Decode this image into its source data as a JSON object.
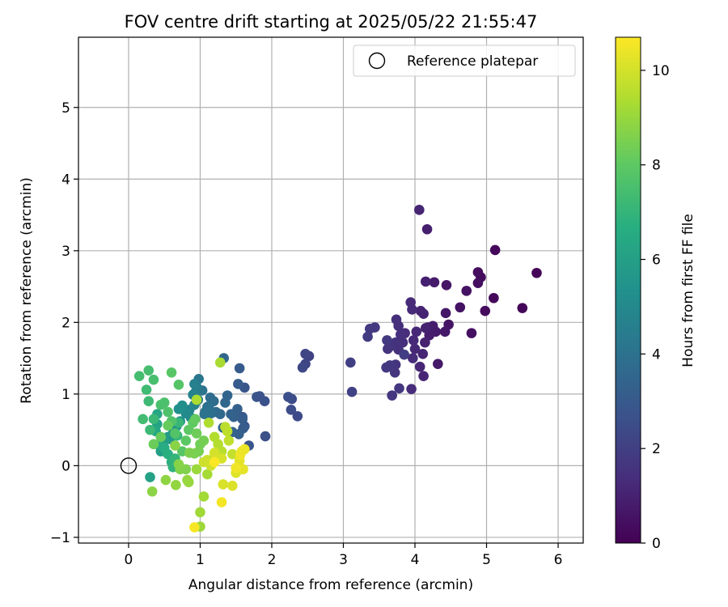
{
  "chart_data": {
    "type": "scatter",
    "title": "FOV centre drift starting at 2025/05/22 21:55:47",
    "xlabel": "Angular distance from reference (arcmin)",
    "ylabel": "Rotation from reference (arcmin)",
    "xlim": [
      -0.7,
      6.35
    ],
    "ylim": [
      -1.08,
      5.98
    ],
    "xticks": [
      0,
      1,
      2,
      3,
      4,
      5,
      6
    ],
    "yticks": [
      -1,
      0,
      1,
      2,
      3,
      4,
      5
    ],
    "grid": true,
    "legend": {
      "position": "top-right",
      "entries": [
        {
          "label": "Reference platepar",
          "marker": "open-circle",
          "x": 0,
          "y": 0
        }
      ]
    },
    "colorbar": {
      "label": "Hours from first FF file",
      "colormap": "viridis",
      "range": [
        0,
        10.7
      ],
      "ticks": [
        0,
        2,
        4,
        6,
        8,
        10
      ]
    },
    "points": [
      [
        5.7,
        2.69,
        0.1
      ],
      [
        5.5,
        2.2,
        0.15
      ],
      [
        5.12,
        3.01,
        0.2
      ],
      [
        5.1,
        2.34,
        0.25
      ],
      [
        4.98,
        2.16,
        0.3
      ],
      [
        4.92,
        2.63,
        0.32
      ],
      [
        4.88,
        2.7,
        0.35
      ],
      [
        4.88,
        2.55,
        0.4
      ],
      [
        4.79,
        1.85,
        0.45
      ],
      [
        4.72,
        2.44,
        0.5
      ],
      [
        4.63,
        2.21,
        0.55
      ],
      [
        4.47,
        1.97,
        0.6
      ],
      [
        4.44,
        2.52,
        0.62
      ],
      [
        4.43,
        2.13,
        0.65
      ],
      [
        4.42,
        1.87,
        0.7
      ],
      [
        4.32,
        1.42,
        0.72
      ],
      [
        4.29,
        1.87,
        0.75
      ],
      [
        4.27,
        2.56,
        0.78
      ],
      [
        4.25,
        1.95,
        0.8
      ],
      [
        4.2,
        1.82,
        0.85
      ],
      [
        4.18,
        1.93,
        0.88
      ],
      [
        4.17,
        3.3,
        0.9
      ],
      [
        4.15,
        2.57,
        0.95
      ],
      [
        4.15,
        1.92,
        0.98
      ],
      [
        4.14,
        1.72,
        1.0
      ],
      [
        4.12,
        2.12,
        1.02
      ],
      [
        4.08,
        2.16,
        1.05
      ],
      [
        4.06,
        3.57,
        1.08
      ],
      [
        4.11,
        1.56,
        1.1
      ],
      [
        4.12,
        1.25,
        1.12
      ],
      [
        4.07,
        1.38,
        1.15
      ],
      [
        4.02,
        1.87,
        1.18
      ],
      [
        4.0,
        1.63,
        1.2
      ],
      [
        3.98,
        1.75,
        1.22
      ],
      [
        3.96,
        2.18,
        1.25
      ],
      [
        3.94,
        2.28,
        1.28
      ],
      [
        3.97,
        1.5,
        1.3
      ],
      [
        3.95,
        1.07,
        1.32
      ],
      [
        3.86,
        1.85,
        1.35
      ],
      [
        3.83,
        1.72,
        1.38
      ],
      [
        3.8,
        1.83,
        1.4
      ],
      [
        3.77,
        1.95,
        1.42
      ],
      [
        3.74,
        2.04,
        1.45
      ],
      [
        3.77,
        1.62,
        1.48
      ],
      [
        3.73,
        1.72,
        1.5
      ],
      [
        3.7,
        1.7,
        1.52
      ],
      [
        3.66,
        1.67,
        1.55
      ],
      [
        3.62,
        1.63,
        1.58
      ],
      [
        3.73,
        1.41,
        1.6
      ],
      [
        3.72,
        1.3,
        1.62
      ],
      [
        3.78,
        1.08,
        1.65
      ],
      [
        3.68,
        0.98,
        1.68
      ],
      [
        3.68,
        1.38,
        1.7
      ],
      [
        3.65,
        1.4,
        1.72
      ],
      [
        3.6,
        1.37,
        1.75
      ],
      [
        3.61,
        1.75,
        1.78
      ],
      [
        3.44,
        1.93,
        1.8
      ],
      [
        3.37,
        1.91,
        1.82
      ],
      [
        3.34,
        1.8,
        1.85
      ],
      [
        3.85,
        1.55,
        1.9
      ],
      [
        3.1,
        1.44,
        2.0
      ],
      [
        3.12,
        1.03,
        2.05
      ],
      [
        2.52,
        1.53,
        2.1
      ],
      [
        2.47,
        1.56,
        2.2
      ],
      [
        2.47,
        1.42,
        2.25
      ],
      [
        2.43,
        1.37,
        2.3
      ],
      [
        2.36,
        0.69,
        2.4
      ],
      [
        2.28,
        0.93,
        2.45
      ],
      [
        2.27,
        0.78,
        2.5
      ],
      [
        2.23,
        0.96,
        2.55
      ],
      [
        1.91,
        0.41,
        2.6
      ],
      [
        1.9,
        0.9,
        2.65
      ],
      [
        1.83,
        0.97,
        2.7
      ],
      [
        1.79,
        0.96,
        2.75
      ],
      [
        1.68,
        0.28,
        2.8
      ],
      [
        1.62,
        1.09,
        2.85
      ],
      [
        1.62,
        0.55,
        2.9
      ],
      [
        1.59,
        0.68,
        2.95
      ],
      [
        1.55,
        1.36,
        3.0
      ],
      [
        1.53,
        1.14,
        3.05
      ],
      [
        1.6,
        0.52,
        3.1
      ],
      [
        1.59,
        0.65,
        3.15
      ],
      [
        1.54,
        0.44,
        3.2
      ],
      [
        1.52,
        0.79,
        3.25
      ],
      [
        1.47,
        0.68,
        3.3
      ],
      [
        1.45,
        0.47,
        3.35
      ],
      [
        1.43,
        0.72,
        3.4
      ],
      [
        1.38,
        0.98,
        3.45
      ],
      [
        1.33,
        1.5,
        3.5
      ],
      [
        1.35,
        0.88,
        3.55
      ],
      [
        1.32,
        0.53,
        3.6
      ],
      [
        1.28,
        0.72,
        3.65
      ],
      [
        1.22,
        0.75,
        3.7
      ],
      [
        1.19,
        0.9,
        3.75
      ],
      [
        1.14,
        0.95,
        3.8
      ],
      [
        1.12,
        0.83,
        3.85
      ],
      [
        1.15,
        0.73,
        3.9
      ],
      [
        1.1,
        0.82,
        3.95
      ],
      [
        1.07,
        0.75,
        4.0
      ],
      [
        1.06,
        0.72,
        4.05
      ],
      [
        1.03,
        1.05,
        4.1
      ],
      [
        0.98,
        1.21,
        4.2
      ],
      [
        0.97,
        0.92,
        4.3
      ],
      [
        0.95,
        1.1,
        4.4
      ],
      [
        0.93,
        1.02,
        4.5
      ],
      [
        0.92,
        1.14,
        4.6
      ],
      [
        0.9,
        0.99,
        4.7
      ],
      [
        0.92,
        0.85,
        4.8
      ],
      [
        0.85,
        0.78,
        4.9
      ],
      [
        0.87,
        0.67,
        5.0
      ],
      [
        0.8,
        0.73,
        5.1
      ],
      [
        0.75,
        0.84,
        5.2
      ],
      [
        0.7,
        0.79,
        5.3
      ],
      [
        0.72,
        0.62,
        5.4
      ],
      [
        0.67,
        0.55,
        5.5
      ],
      [
        0.62,
        0.45,
        5.6
      ],
      [
        0.58,
        0.37,
        5.7
      ],
      [
        0.55,
        0.4,
        5.8
      ],
      [
        0.5,
        0.35,
        5.9
      ],
      [
        0.45,
        0.2,
        6.0
      ],
      [
        0.3,
        -0.16,
        6.1
      ],
      [
        0.4,
        0.58,
        6.2
      ],
      [
        0.4,
        0.72,
        6.3
      ],
      [
        0.38,
        0.48,
        6.4
      ],
      [
        0.42,
        0.29,
        6.5
      ],
      [
        0.5,
        0.25,
        6.6
      ],
      [
        0.55,
        0.16,
        6.7
      ],
      [
        0.6,
        0.05,
        6.8
      ],
      [
        0.62,
        -0.02,
        6.9
      ],
      [
        0.65,
        0.1,
        7.0
      ],
      [
        0.68,
        0.42,
        7.05
      ],
      [
        0.7,
        0.6,
        7.1
      ],
      [
        0.35,
        0.65,
        7.15
      ],
      [
        0.3,
        0.5,
        7.2
      ],
      [
        0.28,
        0.9,
        7.25
      ],
      [
        0.25,
        1.06,
        7.3
      ],
      [
        0.2,
        0.65,
        7.35
      ],
      [
        0.15,
        1.25,
        7.4
      ],
      [
        0.28,
        1.33,
        7.45
      ],
      [
        0.35,
        1.2,
        7.5
      ],
      [
        0.45,
        0.85,
        7.55
      ],
      [
        0.5,
        0.88,
        7.6
      ],
      [
        0.55,
        0.75,
        7.65
      ],
      [
        0.6,
        0.62,
        7.7
      ],
      [
        0.65,
        0.45,
        7.75
      ],
      [
        0.7,
        1.13,
        7.8
      ],
      [
        0.75,
        0.2,
        7.85
      ],
      [
        0.6,
        1.3,
        7.9
      ],
      [
        0.8,
        0.35,
        7.95
      ],
      [
        0.84,
        0.5,
        8.0
      ],
      [
        0.9,
        0.6,
        8.05
      ],
      [
        0.93,
        0.65,
        8.1
      ],
      [
        0.55,
        0.56,
        8.15
      ],
      [
        0.45,
        0.4,
        8.2
      ],
      [
        0.35,
        0.3,
        8.25
      ],
      [
        0.95,
        0.45,
        8.3
      ],
      [
        1.0,
        0.3,
        8.35
      ],
      [
        1.05,
        0.35,
        8.4
      ],
      [
        0.98,
        0.2,
        8.45
      ],
      [
        0.92,
        0.17,
        8.5
      ],
      [
        0.85,
        0.18,
        8.55
      ],
      [
        0.8,
        -0.05,
        8.6
      ],
      [
        0.72,
        -0.05,
        8.65
      ],
      [
        0.7,
        0.02,
        8.7
      ],
      [
        0.65,
        0.28,
        8.75
      ],
      [
        0.33,
        -0.36,
        8.8
      ],
      [
        0.52,
        -0.2,
        8.85
      ],
      [
        0.66,
        -0.27,
        8.9
      ],
      [
        0.82,
        -0.2,
        8.95
      ],
      [
        0.84,
        -0.23,
        9.0
      ],
      [
        0.95,
        -0.05,
        9.05
      ],
      [
        1.0,
        -0.85,
        9.1
      ],
      [
        1.0,
        -0.65,
        9.15
      ],
      [
        1.05,
        -0.43,
        9.2
      ],
      [
        1.1,
        -0.12,
        9.25
      ],
      [
        1.28,
        1.44,
        9.3
      ],
      [
        0.95,
        0.92,
        9.35
      ],
      [
        1.12,
        0.6,
        9.4
      ],
      [
        1.2,
        0.4,
        9.45
      ],
      [
        1.25,
        0.3,
        9.5
      ],
      [
        1.3,
        0.2,
        9.55
      ],
      [
        1.35,
        0.54,
        9.6
      ],
      [
        1.38,
        0.48,
        9.65
      ],
      [
        1.4,
        0.35,
        9.7
      ],
      [
        1.45,
        0.16,
        9.75
      ],
      [
        1.2,
        0.12,
        9.8
      ],
      [
        1.1,
        0.08,
        9.85
      ],
      [
        1.05,
        0.05,
        9.9
      ],
      [
        1.15,
        0.0,
        9.95
      ],
      [
        1.2,
        0.18,
        10.0
      ],
      [
        1.3,
        0.1,
        10.05
      ],
      [
        1.32,
        -0.26,
        10.1
      ],
      [
        1.45,
        -0.28,
        10.15
      ],
      [
        1.5,
        -0.1,
        10.2
      ],
      [
        1.55,
        0.07,
        10.25
      ],
      [
        1.6,
        -0.05,
        10.3
      ],
      [
        1.58,
        0.2,
        10.35
      ],
      [
        1.62,
        0.23,
        10.4
      ],
      [
        1.56,
        0.15,
        10.45
      ],
      [
        1.5,
        -0.03,
        10.5
      ],
      [
        1.3,
        -0.51,
        10.55
      ],
      [
        0.92,
        -0.86,
        10.6
      ],
      [
        1.2,
        0.05,
        10.65
      ]
    ]
  }
}
